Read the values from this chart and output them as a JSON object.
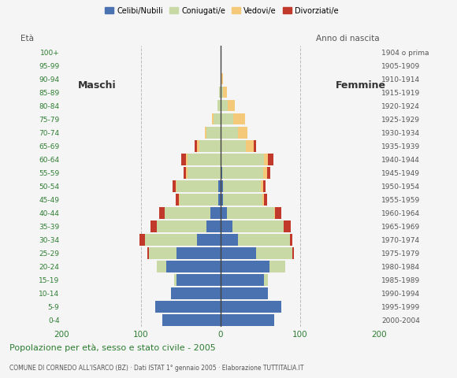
{
  "age_groups": [
    "0-4",
    "5-9",
    "10-14",
    "15-19",
    "20-24",
    "25-29",
    "30-34",
    "35-39",
    "40-44",
    "45-49",
    "50-54",
    "55-59",
    "60-64",
    "65-69",
    "70-74",
    "75-79",
    "80-84",
    "85-89",
    "90-94",
    "95-99",
    "100+"
  ],
  "birth_years": [
    "2000-2004",
    "1995-1999",
    "1990-1994",
    "1985-1989",
    "1980-1984",
    "1975-1979",
    "1970-1974",
    "1965-1969",
    "1960-1964",
    "1955-1959",
    "1950-1954",
    "1945-1949",
    "1940-1944",
    "1935-1939",
    "1930-1934",
    "1925-1929",
    "1920-1924",
    "1915-1919",
    "1910-1914",
    "1905-1909",
    "1904 o prima"
  ],
  "males": {
    "celibi": [
      73,
      82,
      62,
      55,
      68,
      55,
      30,
      18,
      13,
      3,
      3,
      0,
      0,
      0,
      0,
      0,
      0,
      0,
      0,
      0,
      0
    ],
    "coniugati": [
      0,
      0,
      0,
      3,
      12,
      35,
      65,
      62,
      57,
      48,
      52,
      42,
      42,
      27,
      18,
      9,
      4,
      2,
      0,
      0,
      0
    ],
    "vedovi": [
      0,
      0,
      0,
      0,
      0,
      0,
      0,
      0,
      0,
      1,
      1,
      2,
      2,
      3,
      2,
      2,
      0,
      0,
      0,
      0,
      0
    ],
    "divorziati": [
      0,
      0,
      0,
      0,
      0,
      2,
      7,
      8,
      7,
      4,
      4,
      2,
      5,
      3,
      0,
      0,
      0,
      0,
      0,
      0,
      0
    ]
  },
  "females": {
    "nubili": [
      68,
      77,
      60,
      55,
      62,
      45,
      22,
      15,
      8,
      3,
      3,
      2,
      0,
      0,
      0,
      0,
      0,
      0,
      0,
      0,
      0
    ],
    "coniugate": [
      0,
      0,
      0,
      5,
      20,
      45,
      65,
      65,
      60,
      50,
      48,
      52,
      55,
      32,
      22,
      16,
      9,
      3,
      1,
      0,
      0
    ],
    "vedove": [
      0,
      0,
      0,
      0,
      0,
      0,
      0,
      0,
      1,
      2,
      3,
      5,
      5,
      10,
      12,
      15,
      9,
      5,
      2,
      0,
      0
    ],
    "divorziate": [
      0,
      0,
      0,
      0,
      0,
      2,
      3,
      8,
      8,
      4,
      3,
      4,
      7,
      3,
      0,
      0,
      0,
      0,
      0,
      0,
      0
    ]
  },
  "colors": {
    "celibi": "#4a72b0",
    "coniugati": "#c8d9a5",
    "vedovi": "#f5c97a",
    "divorziati": "#c0392b"
  },
  "xlim": 200,
  "title": "Popolazione per età, sesso e stato civile - 2005",
  "subtitle": "COMUNE DI CORNEDO ALL'ISARCO (BZ) · Dati ISTAT 1° gennaio 2005 · Elaborazione TUTTITALIA.IT",
  "legend_labels": [
    "Celibi/Nubili",
    "Coniugati/e",
    "Vedovi/e",
    "Divorziati/e"
  ],
  "background_color": "#f5f5f5",
  "bar_height": 0.85
}
